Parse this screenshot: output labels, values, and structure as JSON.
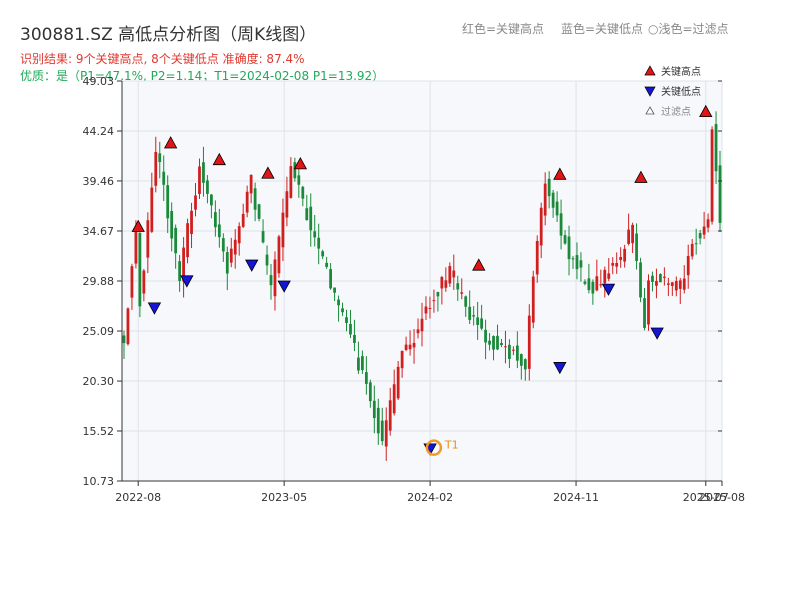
{
  "header": {
    "title": "300881.SZ 高低点分析图（周K线图）",
    "result_line": "识别结果: 9个关键高点, 8个关键低点 准确度: 87.4%",
    "quality_line": "优质：是（P1=47.1%, P2=1.14；T1=2024-02-08 P1=13.92）"
  },
  "hints": {
    "red": "红色=关键高点",
    "blue": "蓝色=关键低点",
    "light": "○浅色=过滤点"
  },
  "legend": {
    "high": "关键高点",
    "low": "关键低点",
    "filtered": "过滤点"
  },
  "colors": {
    "up": "#d01f1f",
    "down": "#1a8a3a",
    "high_marker": "#e11515",
    "low_marker": "#1515d8",
    "t1_ring": "#f29a1f",
    "plot_bg": "#f6f8fb",
    "grid": "#dde3ea"
  },
  "chart_data": {
    "type": "candlestick",
    "title": "300881.SZ 高低点分析图（周K线图）",
    "y_ticks": [
      "49.03",
      "44.24",
      "39.46",
      "34.67",
      "29.88",
      "25.09",
      "20.30",
      "15.52",
      "10.73"
    ],
    "ylim": [
      10.73,
      49.03
    ],
    "x_ticks": [
      "2022-08",
      "2023-05",
      "2024-02",
      "2024-11",
      "2025-07",
      "2025-08"
    ],
    "x_range": [
      "2022-07",
      "2025-08"
    ],
    "grid": true,
    "legend_position": "top-right",
    "trend_anchors": [
      [
        0,
        24.0
      ],
      [
        3,
        34.5
      ],
      [
        4,
        28.0
      ],
      [
        8,
        42.6
      ],
      [
        14,
        30.5
      ],
      [
        19,
        40.8
      ],
      [
        26,
        31.0
      ],
      [
        32,
        39.5
      ],
      [
        37,
        29.0
      ],
      [
        42,
        40.5
      ],
      [
        56,
        25.5
      ],
      [
        63,
        17.5
      ],
      [
        65,
        14.5
      ],
      [
        70,
        22.5
      ],
      [
        76,
        27.0
      ],
      [
        82,
        31.0
      ],
      [
        87,
        26.5
      ],
      [
        94,
        23.5
      ],
      [
        98,
        23.0
      ],
      [
        101,
        22.0
      ],
      [
        103,
        30.5
      ],
      [
        106,
        39.5
      ],
      [
        112,
        32.5
      ],
      [
        117,
        29.0
      ],
      [
        124,
        31.5
      ],
      [
        128,
        35.0
      ],
      [
        131,
        26.0
      ],
      [
        132,
        30.0
      ],
      [
        140,
        29.5
      ],
      [
        143,
        33.0
      ],
      [
        147,
        36.0
      ],
      [
        148,
        45.0
      ],
      [
        150,
        36.0
      ]
    ],
    "key_highs": [
      {
        "date": "2022-08",
        "value": 35.0
      },
      {
        "date": "2022-10",
        "value": 43.0
      },
      {
        "date": "2023-01",
        "value": 41.4
      },
      {
        "date": "2023-04",
        "value": 40.1
      },
      {
        "date": "2023-06",
        "value": 41.0
      },
      {
        "date": "2024-05",
        "value": 31.3
      },
      {
        "date": "2024-10",
        "value": 40.0
      },
      {
        "date": "2025-03",
        "value": 39.7
      },
      {
        "date": "2025-07",
        "value": 46.0
      }
    ],
    "key_lows": [
      {
        "date": "2022-09",
        "value": 27.4
      },
      {
        "date": "2022-11",
        "value": 30.0
      },
      {
        "date": "2023-03",
        "value": 31.5
      },
      {
        "date": "2023-05",
        "value": 29.5
      },
      {
        "date": "2024-02",
        "value": 13.9
      },
      {
        "date": "2024-10",
        "value": 21.7
      },
      {
        "date": "2025-01",
        "value": 29.2
      },
      {
        "date": "2025-04",
        "value": 25.0
      }
    ],
    "t1": {
      "label": "T1",
      "date": "2024-02-08",
      "value": 13.92
    }
  }
}
